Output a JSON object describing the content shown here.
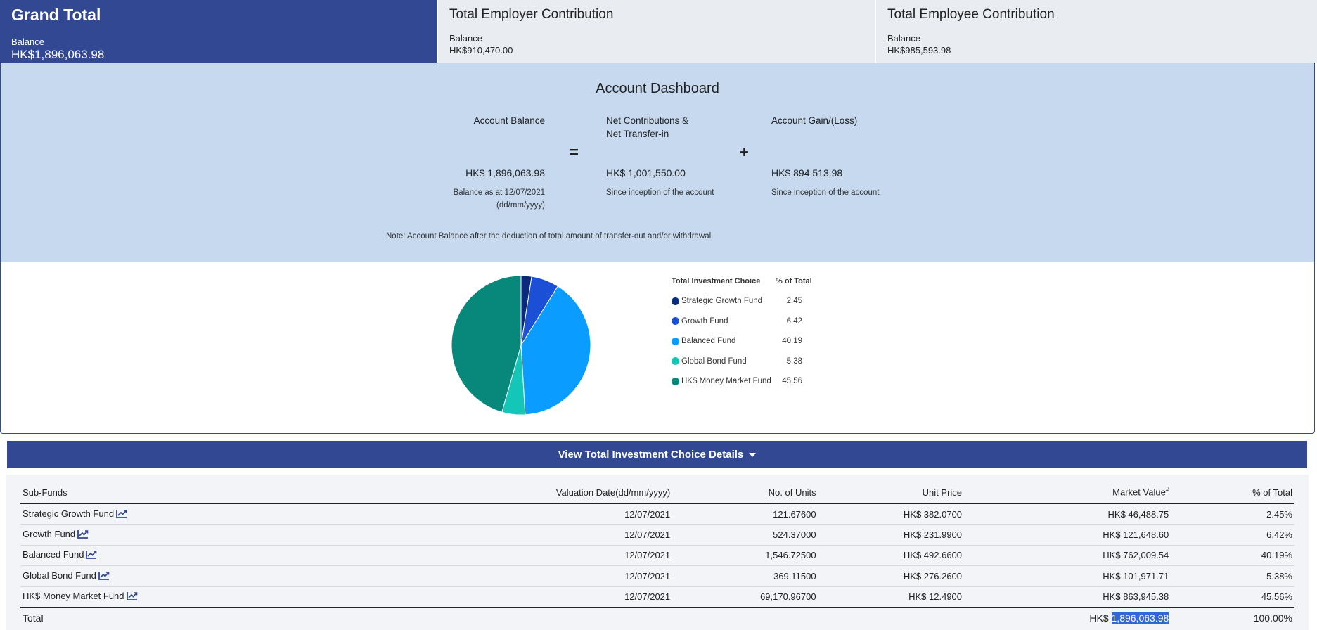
{
  "cards": {
    "grand_total": {
      "title": "Grand Total",
      "label": "Balance",
      "value": "HK$1,896,063.98"
    },
    "employer": {
      "title": "Total Employer Contribution",
      "label": "Balance",
      "value": "HK$910,470.00"
    },
    "employee": {
      "title": "Total Employee Contribution",
      "label": "Balance",
      "value": "HK$985,593.98"
    }
  },
  "dashboard": {
    "title": "Account Dashboard",
    "balance": {
      "heading": "Account Balance",
      "amount": "HK$ 1,896,063.98",
      "sub1": "Balance as at 12/07/2021",
      "sub2": "(dd/mm/yyyy)"
    },
    "equals": "=",
    "contributions": {
      "heading1": "Net Contributions &",
      "heading2": "Net Transfer-in",
      "amount": "HK$ 1,001,550.00",
      "sub": "Since inception of the account"
    },
    "plus": "+",
    "gain": {
      "heading": "Account Gain/(Loss)",
      "amount": "HK$ 894,513.98",
      "sub": "Since inception of the account"
    },
    "note": "Note: Account Balance after the deduction of total amount of transfer-out and/or withdrawal"
  },
  "legend": {
    "head_name": "Total Investment Choice",
    "head_pct": "% of Total"
  },
  "chart_data": {
    "type": "pie",
    "categories": [
      "Strategic Growth Fund",
      "Growth Fund",
      "Balanced Fund",
      "Global Bond Fund",
      "HK$ Money Market Fund"
    ],
    "values": [
      2.45,
      6.42,
      40.19,
      5.38,
      45.56
    ],
    "colors": [
      "#0a2a7a",
      "#1b4fd6",
      "#0a9dff",
      "#14c6b8",
      "#08887b"
    ]
  },
  "view_bar": {
    "label": "View Total Investment Choice Details"
  },
  "table": {
    "headers": [
      "Sub-Funds",
      "Valuation Date(dd/mm/yyyy)",
      "No. of Units",
      "Unit Price",
      "Market Value",
      "% of Total"
    ],
    "market_value_sup": "#",
    "rows": [
      {
        "fund": "Strategic Growth Fund",
        "date": "12/07/2021",
        "units": "121.67600",
        "price": "HK$ 382.0700",
        "value": "HK$ 46,488.75",
        "pct": "2.45%"
      },
      {
        "fund": "Growth Fund",
        "date": "12/07/2021",
        "units": "524.37000",
        "price": "HK$ 231.9900",
        "value": "HK$ 121,648.60",
        "pct": "6.42%"
      },
      {
        "fund": "Balanced Fund",
        "date": "12/07/2021",
        "units": "1,546.72500",
        "price": "HK$ 492.6600",
        "value": "HK$ 762,009.54",
        "pct": "40.19%"
      },
      {
        "fund": "Global Bond Fund",
        "date": "12/07/2021",
        "units": "369.11500",
        "price": "HK$ 276.2600",
        "value": "HK$ 101,971.71",
        "pct": "5.38%"
      },
      {
        "fund": "HK$ Money Market Fund",
        "date": "12/07/2021",
        "units": "69,170.96700",
        "price": "HK$ 12.4900",
        "value": "HK$ 863,945.38",
        "pct": "45.56%"
      }
    ],
    "total": {
      "label": "Total",
      "currency": "HK$",
      "value": "1,896,063.98",
      "pct": "100.00%"
    }
  }
}
